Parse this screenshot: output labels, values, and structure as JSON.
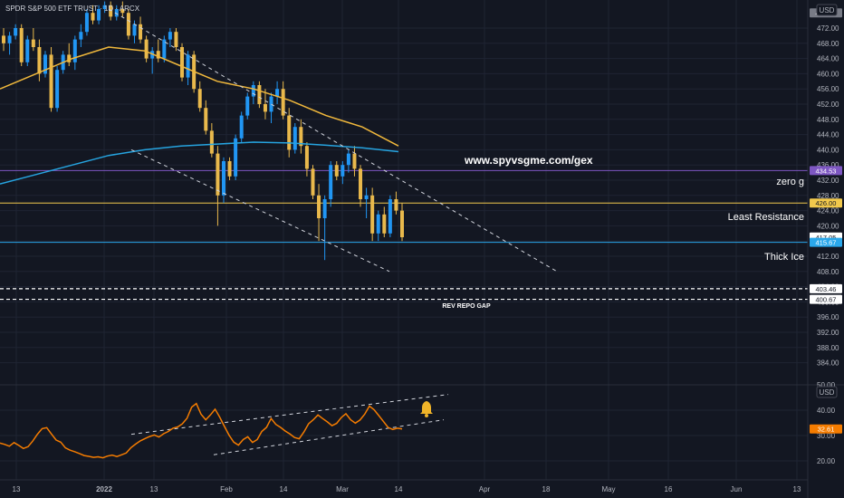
{
  "header": {
    "symbol_title": "SPDR S&P 500 ETF TRUST · 1D · ARCX",
    "currency": "USD",
    "currency_lower": "USD"
  },
  "annotations": {
    "website": "www.spyvsgme.com/gex",
    "zero_g": "zero g",
    "least_resistance": "Least Resistance",
    "thick_ice": "Thick Ice",
    "rev_repo_gap": "REV REPO GAP"
  },
  "colors": {
    "background": "#131722",
    "grid": "#1f2433",
    "up_candle": "#2196f3",
    "down_candle": "#e9b94c",
    "ma_short": "#f0b83c",
    "ma_long": "#26a4e0",
    "zero_g_line": "#7e57c2",
    "least_res_line": "#f2c94c",
    "thick_ice_line": "#2aa7ea",
    "dashed": "#d1d4dc",
    "oscillator": "#f57c00",
    "bell": "#f0b429"
  },
  "chart_data": [
    {
      "type": "candlestick",
      "title": "SPDR S&P 500 ETF TRUST",
      "x_tick_labels": [
        "13",
        "2022",
        "13",
        "Feb",
        "14",
        "Mar",
        "14",
        "Apr",
        "18",
        "May",
        "16",
        "Jun",
        "13"
      ],
      "y_tick_labels": [
        472.0,
        468.0,
        464.0,
        460.0,
        456.0,
        452.0,
        448.0,
        444.0,
        440.0,
        436.0,
        432.0,
        428.0,
        424.0,
        420.0,
        416.0,
        412.0,
        408.0,
        404.0,
        400.0,
        396.0,
        392.0,
        388.0,
        384.0
      ],
      "ylim": [
        380,
        476
      ],
      "price_labels": [
        {
          "value": 476.0,
          "text": "476.00"
        },
        {
          "value": 434.53,
          "text": "434.53"
        },
        {
          "value": 426.0,
          "text": "426.00"
        },
        {
          "value": 417.05,
          "text": "417.05"
        },
        {
          "value": 415.67,
          "text": "415.67"
        },
        {
          "value": 403.46,
          "text": "403.46"
        },
        {
          "value": 400.67,
          "text": "400.67"
        }
      ],
      "horizontal_levels": [
        {
          "name": "zero g",
          "value": 434.53
        },
        {
          "name": "Least Resistance",
          "value": 426.0
        },
        {
          "name": "Thick Ice",
          "value": 415.67
        }
      ],
      "candles": [
        [
          470,
          472,
          466,
          468
        ],
        [
          468,
          471,
          465,
          470
        ],
        [
          470,
          473,
          469,
          472
        ],
        [
          472,
          473,
          462,
          463
        ],
        [
          463,
          470,
          462,
          469
        ],
        [
          469,
          472,
          466,
          467
        ],
        [
          467,
          469,
          458,
          460
        ],
        [
          460,
          466,
          459,
          465
        ],
        [
          465,
          467,
          450,
          451
        ],
        [
          451,
          462,
          450,
          461
        ],
        [
          461,
          466,
          460,
          465
        ],
        [
          465,
          468,
          462,
          463
        ],
        [
          463,
          470,
          461,
          469
        ],
        [
          469,
          473,
          467,
          471
        ],
        [
          471,
          477,
          470,
          476
        ],
        [
          476,
          478,
          473,
          474
        ],
        [
          474,
          478,
          473,
          477
        ],
        [
          477,
          479,
          476,
          478
        ],
        [
          478,
          479,
          474,
          475
        ],
        [
          475,
          478,
          474,
          477
        ],
        [
          477,
          479,
          475,
          476
        ],
        [
          476,
          477,
          469,
          470
        ],
        [
          470,
          474,
          468,
          473
        ],
        [
          473,
          475,
          468,
          469
        ],
        [
          469,
          470,
          463,
          464
        ],
        [
          464,
          467,
          460,
          466
        ],
        [
          466,
          469,
          463,
          464
        ],
        [
          464,
          470,
          463,
          469
        ],
        [
          469,
          472,
          467,
          471
        ],
        [
          471,
          472,
          466,
          467
        ],
        [
          467,
          468,
          458,
          459
        ],
        [
          459,
          466,
          457,
          465
        ],
        [
          465,
          466,
          455,
          456
        ],
        [
          456,
          458,
          450,
          451
        ],
        [
          451,
          453,
          444,
          445
        ],
        [
          445,
          447,
          438,
          439
        ],
        [
          439,
          441,
          420,
          428
        ],
        [
          428,
          438,
          426,
          437
        ],
        [
          437,
          438,
          432,
          433
        ],
        [
          433,
          444,
          432,
          443
        ],
        [
          443,
          450,
          442,
          449
        ],
        [
          449,
          455,
          448,
          454
        ],
        [
          454,
          458,
          452,
          457
        ],
        [
          457,
          458,
          451,
          452
        ],
        [
          452,
          456,
          448,
          450
        ],
        [
          450,
          455,
          447,
          454
        ],
        [
          454,
          458,
          452,
          456
        ],
        [
          456,
          458,
          448,
          449
        ],
        [
          449,
          451,
          438,
          440
        ],
        [
          440,
          447,
          439,
          446
        ],
        [
          446,
          448,
          439,
          441
        ],
        [
          441,
          442,
          433,
          435
        ],
        [
          435,
          436,
          427,
          428
        ],
        [
          428,
          431,
          416,
          422
        ],
        [
          422,
          428,
          411,
          427
        ],
        [
          427,
          437,
          425,
          436
        ],
        [
          436,
          437,
          432,
          433
        ],
        [
          433,
          437,
          431,
          436
        ],
        [
          436,
          440,
          434,
          439
        ],
        [
          439,
          441,
          433,
          435
        ],
        [
          435,
          436,
          425,
          427
        ],
        [
          427,
          430,
          422,
          428
        ],
        [
          428,
          430,
          416,
          418
        ],
        [
          418,
          424,
          416,
          423
        ],
        [
          423,
          425,
          417,
          418
        ],
        [
          418,
          428,
          417,
          427
        ],
        [
          427,
          429,
          423,
          424
        ],
        [
          424,
          426,
          416,
          417
        ]
      ],
      "moving_averages": [
        {
          "name": "MA short",
          "points": [
            [
              0,
              456
            ],
            [
              40,
              460
            ],
            [
              80,
              464
            ],
            [
              120,
              467
            ],
            [
              160,
              466
            ],
            [
              200,
              462
            ],
            [
              240,
              458
            ],
            [
              280,
              456
            ],
            [
              320,
              453
            ],
            [
              360,
              449
            ],
            [
              400,
              446
            ],
            [
              440,
              441
            ]
          ]
        },
        {
          "name": "MA long",
          "points": [
            [
              0,
              431
            ],
            [
              40,
              433.5
            ],
            [
              80,
              436
            ],
            [
              120,
              438.5
            ],
            [
              160,
              440
            ],
            [
              200,
              441
            ],
            [
              240,
              441.5
            ],
            [
              280,
              442
            ],
            [
              320,
              441.8
            ],
            [
              360,
              441.2
            ],
            [
              400,
              440.5
            ],
            [
              440,
              439.5
            ]
          ]
        }
      ],
      "dashed_trendlines": [
        {
          "from": [
            120,
            477
          ],
          "to": [
            615,
            408
          ]
        },
        {
          "from": [
            145,
            440
          ],
          "to": [
            430,
            408
          ]
        }
      ],
      "gap_lines": [
        403.46,
        400.67
      ]
    },
    {
      "type": "line",
      "title": "",
      "y_tick_labels": [
        50.0,
        40.0,
        30.0,
        20.0
      ],
      "ylim": [
        18,
        50
      ],
      "current_value": {
        "value": 32.61,
        "text": "32.61"
      },
      "series": [
        {
          "values": [
            27,
            26.5,
            25.8,
            27.2,
            26.1,
            24.9,
            25.6,
            27.8,
            30.5,
            32.7,
            33.1,
            30.6,
            28.2,
            27.4,
            25.1,
            24.2,
            23.6,
            22.9,
            22.1,
            21.8,
            21.4,
            21.6,
            21.2,
            21.9,
            22.3,
            21.7,
            22.4,
            23.1,
            25.2,
            26.6,
            27.9,
            28.8,
            29.6,
            30.2,
            29.4,
            30.7,
            31.6,
            32.9,
            33.4,
            34.6,
            36.8,
            41.2,
            42.6,
            38.4,
            36.2,
            38.1,
            40.4,
            37.2,
            33.6,
            30.1,
            27.4,
            26.2,
            28.4,
            29.5,
            27.3,
            28.4,
            31.6,
            33.2,
            36.7,
            34.4,
            33.2,
            31.8,
            30.6,
            29.2,
            28.7,
            31.4,
            34.6,
            36.2,
            38.1,
            36.7,
            35.4,
            33.9,
            34.8,
            37.1,
            38.6,
            36.2,
            34.9,
            36.1,
            38.4,
            41.6,
            40.2,
            37.9,
            35.6,
            33.2,
            32.4,
            32.9,
            32.61
          ]
        }
      ],
      "dashed_channel": [
        {
          "from": [
            145,
            30.5
          ],
          "to": [
            495,
            46.2
          ]
        },
        {
          "from": [
            236,
            22.4
          ],
          "to": [
            490,
            36.2
          ]
        }
      ],
      "alert": {
        "icon": "bell-icon"
      }
    }
  ]
}
